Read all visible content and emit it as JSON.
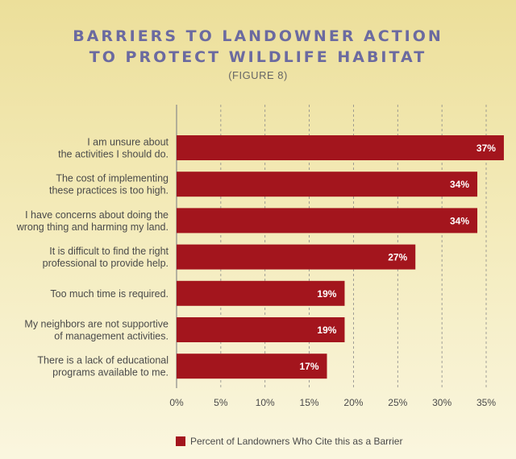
{
  "header": {
    "title_line1": "BARRIERS TO LANDOWNER ACTION",
    "title_line2": "TO PROTECT WILDLIFE HABITAT",
    "subtitle": "(FIGURE 8)"
  },
  "colors": {
    "bar": "#a3151d",
    "title": "#6b6aa0",
    "grid": "#8a8a8a"
  },
  "chart_data": {
    "type": "bar",
    "orientation": "horizontal",
    "title": "BARRIERS TO LANDOWNER ACTION TO PROTECT WILDLIFE HABITAT",
    "subtitle": "(FIGURE 8)",
    "categories": [
      [
        "I am unsure about",
        "the activities I should do."
      ],
      [
        "The cost of implementing",
        "these practices is too high."
      ],
      [
        "I have concerns about doing the",
        "wrong thing and harming my land."
      ],
      [
        "It is difficult to find the right",
        "professional to provide help."
      ],
      [
        "Too much time is required."
      ],
      [
        "My neighbors are not supportive",
        "of management activities."
      ],
      [
        "There is a lack of educational",
        "programs available to me."
      ]
    ],
    "values": [
      37,
      34,
      34,
      27,
      19,
      19,
      17
    ],
    "value_labels": [
      "37%",
      "34%",
      "34%",
      "27%",
      "19%",
      "19%",
      "17%"
    ],
    "xlim": [
      0,
      35
    ],
    "xticks": [
      "0%",
      "5%",
      "10%",
      "15%",
      "20%",
      "25%",
      "30%",
      "35%"
    ],
    "grid": "vertical dashed",
    "legend": {
      "position": "bottom",
      "label": "Percent of Landowners Who Cite this as a Barrier"
    }
  }
}
